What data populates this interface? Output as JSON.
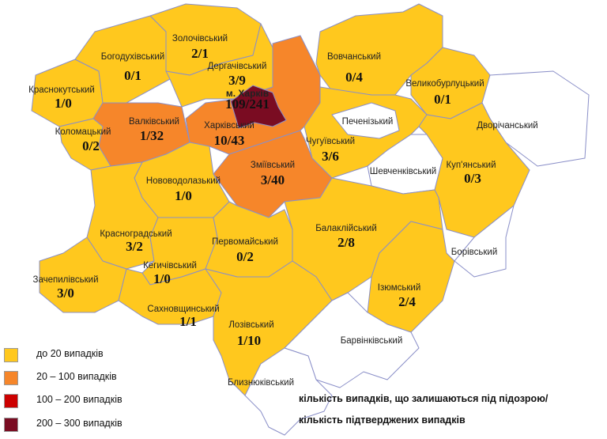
{
  "colors": {
    "low": "#FFC81E",
    "mid": "#F6862A",
    "high": "#CC0000",
    "top": "#7A0C22",
    "none": "#FFFFFF"
  },
  "districts": {
    "krasnokutskyi": {
      "name": "Краснокутський",
      "value": "1/0",
      "level": "low"
    },
    "bohodukhivskyi": {
      "name": "Богодухівський",
      "value": "0/1",
      "level": "low"
    },
    "zolochivskyi": {
      "name": "Золочівський",
      "value": "2/1",
      "level": "low"
    },
    "derhachivskyi": {
      "name": "Дергачівський",
      "value": "3/9",
      "level": "low"
    },
    "kharkiv_city": {
      "name": "м. Харків",
      "value": "109/241",
      "level": "top"
    },
    "vovchanskyi": {
      "name": "Вовчанський",
      "value": "0/4",
      "level": "low"
    },
    "velykoburlutskyi": {
      "name": "Великобурлуцький",
      "value": "0/1",
      "level": "low"
    },
    "kolomatskyi": {
      "name": "Коломацький",
      "value": "0/2",
      "level": "low"
    },
    "valkivskyi": {
      "name": "Валківський",
      "value": "1/32",
      "level": "mid"
    },
    "kharkivskyi": {
      "name": "Харківський",
      "value": "10/43",
      "level": "mid"
    },
    "pechenizkyi": {
      "name": "Печенізький",
      "level": "none"
    },
    "dvorichanskyi": {
      "name": "Дворічанський",
      "level": "none"
    },
    "chuhuivskyi": {
      "name": "Чугуївський",
      "value": "3/6",
      "level": "low"
    },
    "shevchenkivskyi": {
      "name": "Шевченківський",
      "level": "none"
    },
    "zmiivskyi": {
      "name": "Зміївський",
      "value": "3/40",
      "level": "mid"
    },
    "kupianskyi": {
      "name": "Куп'янський",
      "value": "0/3",
      "level": "low"
    },
    "novovodolazkyi": {
      "name": "Нововодолазький",
      "value": "1/0",
      "level": "low"
    },
    "krasnohradskyi": {
      "name": "Красноградський",
      "value": "3/2",
      "level": "low"
    },
    "pervomaiskyi": {
      "name": "Первомайський",
      "value": "0/2",
      "level": "low"
    },
    "balakliiskyi": {
      "name": "Балаклійський",
      "value": "2/8",
      "level": "low"
    },
    "borivskyi": {
      "name": "Борівський",
      "level": "none"
    },
    "kehychivskyi": {
      "name": "Кегичівський",
      "value": "1/0",
      "level": "low"
    },
    "iziumskyi": {
      "name": "Ізюмський",
      "value": "2/4",
      "level": "low"
    },
    "zachepylivskyi": {
      "name": "Зачепилівський",
      "value": "3/0",
      "level": "low"
    },
    "sakhnovshchynskyi": {
      "name": "Сахновщинський",
      "value": "1/1",
      "level": "low"
    },
    "lozivskyi": {
      "name": "Лозівський",
      "value": "1/10",
      "level": "low"
    },
    "barvinkivskyi": {
      "name": "Барвінківський",
      "level": "none"
    },
    "blyzniukivskyi": {
      "name": "Близнюківський",
      "level": "none"
    }
  },
  "legend": [
    {
      "label": "до 20 випадків",
      "level": "low"
    },
    {
      "label": "20 – 100  випадків",
      "level": "mid"
    },
    {
      "label": "100 – 200  випадків",
      "level": "high"
    },
    {
      "label": "200 – 300  випадків",
      "level": "top"
    }
  ],
  "note": {
    "line1": "кількість випадків, що залишаються під підозрою/",
    "line2": "кількість підтверджених випадків"
  }
}
